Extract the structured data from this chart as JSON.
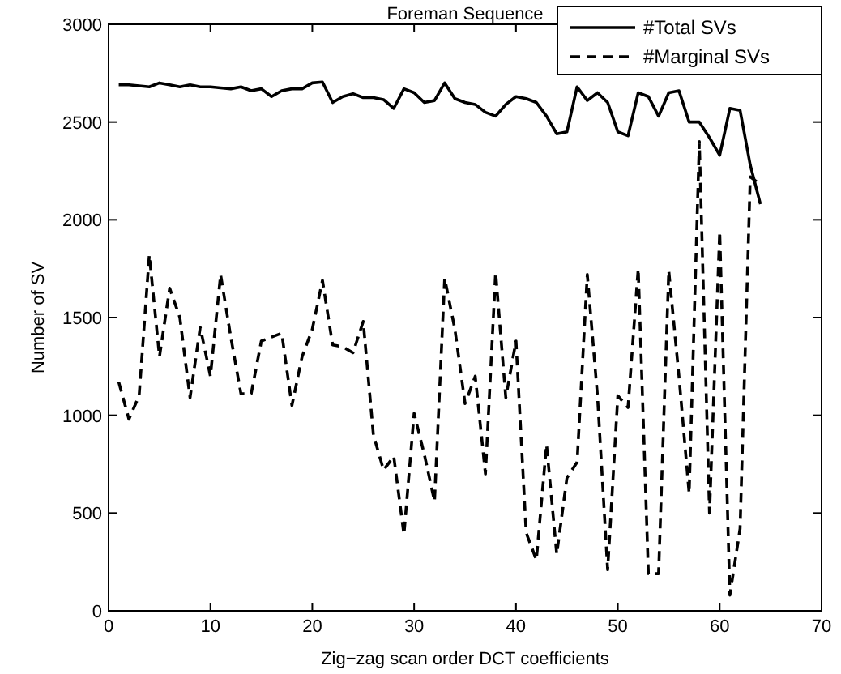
{
  "chart_data": {
    "type": "line",
    "title": "Foreman Sequence",
    "xlabel": "Zig−zag scan order DCT coefficients",
    "ylabel": "Number of SV",
    "x": [
      1,
      2,
      3,
      4,
      5,
      6,
      7,
      8,
      9,
      10,
      11,
      12,
      13,
      14,
      15,
      16,
      17,
      18,
      19,
      20,
      21,
      22,
      23,
      24,
      25,
      26,
      27,
      28,
      29,
      30,
      31,
      32,
      33,
      34,
      35,
      36,
      37,
      38,
      39,
      40,
      41,
      42,
      43,
      44,
      45,
      46,
      47,
      48,
      49,
      50,
      51,
      52,
      53,
      54,
      55,
      56,
      57,
      58,
      59,
      60,
      61,
      62,
      63,
      64
    ],
    "series": [
      {
        "name": "#Total SVs",
        "color": "#000000",
        "line_style": "solid",
        "values": [
          2690,
          2690,
          2685,
          2680,
          2700,
          2690,
          2680,
          2690,
          2680,
          2680,
          2675,
          2670,
          2680,
          2660,
          2670,
          2630,
          2660,
          2670,
          2670,
          2700,
          2705,
          2600,
          2630,
          2645,
          2625,
          2625,
          2615,
          2570,
          2670,
          2650,
          2600,
          2610,
          2700,
          2620,
          2600,
          2590,
          2550,
          2530,
          2590,
          2630,
          2620,
          2600,
          2530,
          2440,
          2450,
          2680,
          2610,
          2650,
          2600,
          2450,
          2430,
          2650,
          2630,
          2530,
          2650,
          2660,
          2500,
          2500,
          2420,
          2330,
          2570,
          2560,
          2280,
          2080
        ]
      },
      {
        "name": "#Marginal SVs",
        "color": "#000000",
        "line_style": "dashed",
        "values": [
          1170,
          980,
          1100,
          1820,
          1300,
          1650,
          1500,
          1090,
          1450,
          1200,
          1720,
          1400,
          1110,
          1110,
          1380,
          1400,
          1420,
          1050,
          1300,
          1440,
          1690,
          1360,
          1350,
          1320,
          1480,
          900,
          720,
          790,
          390,
          1010,
          800,
          560,
          1700,
          1440,
          1060,
          1200,
          700,
          1730,
          1090,
          1380,
          400,
          260,
          850,
          290,
          680,
          760,
          1720,
          1100,
          210,
          1100,
          1040,
          1750,
          190,
          190,
          1740,
          1200,
          600,
          2400,
          500,
          1940,
          80,
          420,
          2220,
          2180
        ]
      }
    ],
    "xlim": [
      0,
      70
    ],
    "xticks": [
      0,
      10,
      20,
      30,
      40,
      50,
      60,
      70
    ],
    "ylim": [
      0,
      3000
    ],
    "yticks": [
      0,
      500,
      1000,
      1500,
      2000,
      2500,
      3000
    ],
    "grid": false,
    "legend": "top right",
    "marker": "none"
  }
}
